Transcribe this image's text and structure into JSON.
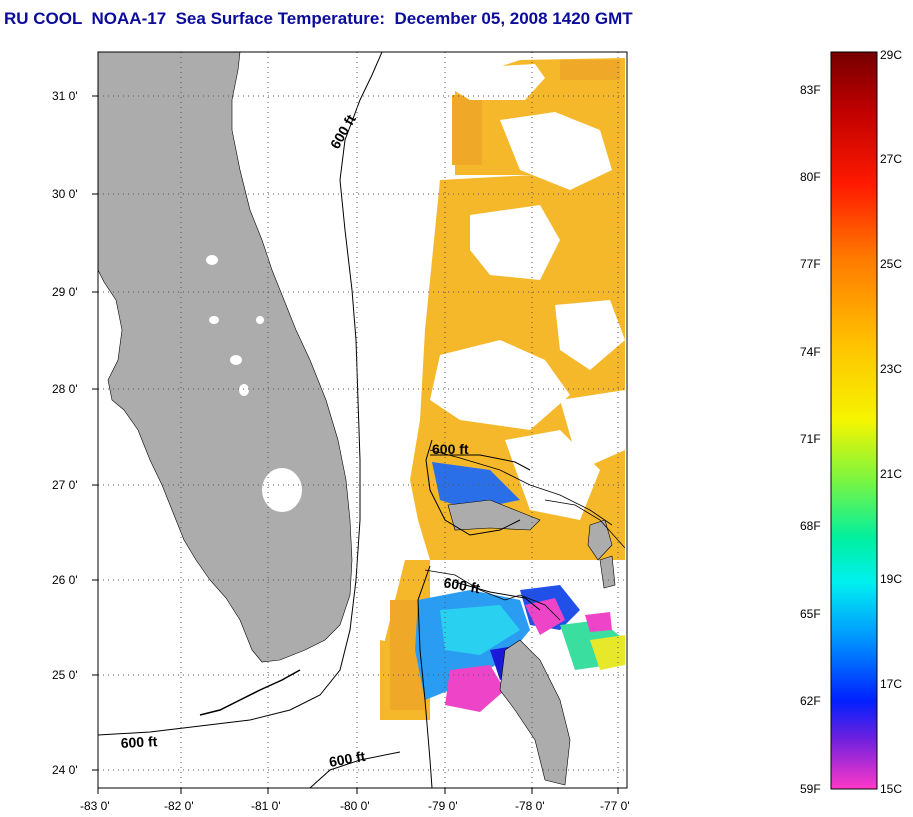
{
  "title": "RU COOL  NOAA-17  Sea Surface Temperature:  December 05, 2008 1420 GMT",
  "map": {
    "lat_ticks": [
      "31 0'",
      "30 0'",
      "29 0'",
      "28 0'",
      "27 0'",
      "26 0'",
      "25 0'",
      "24 0'"
    ],
    "lon_ticks": [
      "-83 0'",
      "-82 0'",
      "-81 0'",
      "-80 0'",
      "-79 0'",
      "-78 0'",
      "-77 0'"
    ],
    "depth_contour_labels": [
      "600 ft",
      "600 ft",
      "600 ft",
      "600 ft",
      "600 ft"
    ],
    "colors": {
      "land": "#acacac",
      "cloud": "#ffffff",
      "warm_water": "#f5b82a",
      "cool_water": "#1e90ff",
      "cold_water": "#ee44c8"
    }
  },
  "colorbar": {
    "fahrenheit_labels": [
      "83F",
      "80F",
      "77F",
      "74F",
      "71F",
      "68F",
      "65F",
      "62F",
      "59F"
    ],
    "celsius_labels": [
      "29C",
      "27C",
      "25C",
      "23C",
      "21C",
      "19C",
      "17C",
      "15C"
    ],
    "gradient_stops": [
      "#7a0000",
      "#ff0000",
      "#ff7f00",
      "#ffcc00",
      "#ffff00",
      "#66ff33",
      "#00ff99",
      "#00ffff",
      "#0099ff",
      "#0033ff",
      "#0000cc",
      "#7f00ff",
      "#ff33cc"
    ]
  }
}
